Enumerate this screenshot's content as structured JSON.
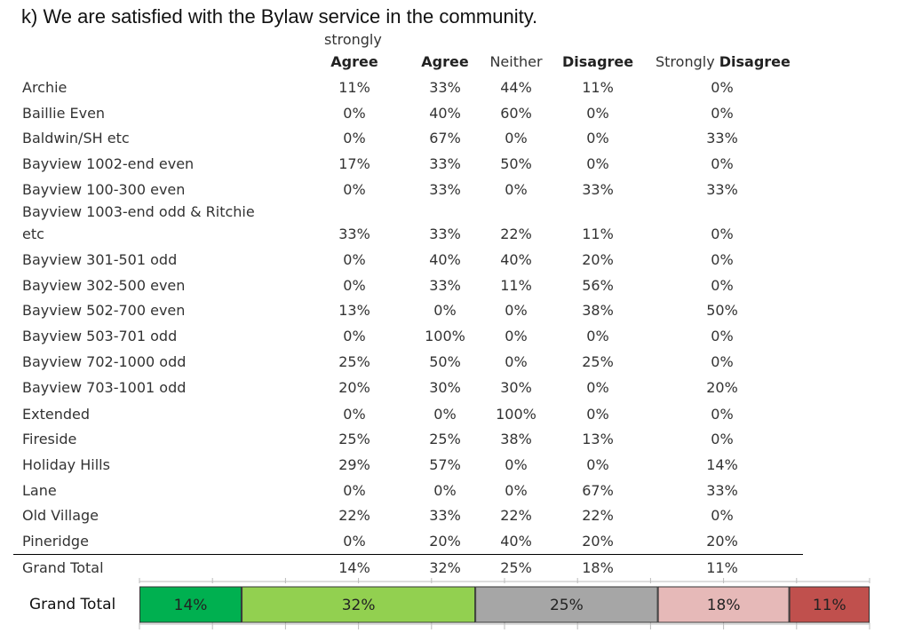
{
  "title": "k) We are satisfied with the Bylaw service in the community.",
  "columns": {
    "strongly_agree_top": "strongly",
    "strongly_agree_bottom": "Agree",
    "agree": "Agree",
    "neither": "Neither",
    "disagree": "Disagree",
    "strongly_disagree_prefix": "Strongly",
    "strongly_disagree_bold": "Disagree"
  },
  "rows": [
    {
      "label": "Archie",
      "values": [
        "11%",
        "33%",
        "44%",
        "11%",
        "0%"
      ]
    },
    {
      "label": "Baillie Even",
      "values": [
        "0%",
        "40%",
        "60%",
        "0%",
        "0%"
      ]
    },
    {
      "label": "Baldwin/SH etc",
      "values": [
        "0%",
        "67%",
        "0%",
        "0%",
        "33%"
      ]
    },
    {
      "label": "Bayview 1002-end even",
      "values": [
        "17%",
        "33%",
        "50%",
        "0%",
        "0%"
      ]
    },
    {
      "label": "Bayview 100-300 even",
      "values": [
        "0%",
        "33%",
        "0%",
        "33%",
        "33%"
      ]
    },
    {
      "label": "Bayview 1003-end odd & Ritchie",
      "label2": "etc",
      "values": [
        "33%",
        "33%",
        "22%",
        "11%",
        "0%"
      ]
    },
    {
      "label": "Bayview 301-501 odd",
      "values": [
        "0%",
        "40%",
        "40%",
        "20%",
        "0%"
      ]
    },
    {
      "label": "Bayview 302-500 even",
      "values": [
        "0%",
        "33%",
        "11%",
        "56%",
        "0%"
      ]
    },
    {
      "label": "Bayview 502-700 even",
      "values": [
        "13%",
        "0%",
        "0%",
        "38%",
        "50%"
      ]
    },
    {
      "label": "Bayview 503-701 odd",
      "values": [
        "0%",
        "100%",
        "0%",
        "0%",
        "0%"
      ]
    },
    {
      "label": "Bayview 702-1000 odd",
      "values": [
        "25%",
        "50%",
        "0%",
        "25%",
        "0%"
      ]
    },
    {
      "label": "Bayview 703-1001 odd",
      "values": [
        "20%",
        "30%",
        "30%",
        "0%",
        "20%"
      ]
    },
    {
      "label": "Extended",
      "values": [
        "0%",
        "0%",
        "100%",
        "0%",
        "0%"
      ]
    },
    {
      "label": "Fireside",
      "values": [
        "25%",
        "25%",
        "38%",
        "13%",
        "0%"
      ]
    },
    {
      "label": "Holiday Hills",
      "values": [
        "29%",
        "57%",
        "0%",
        "0%",
        "14%"
      ]
    },
    {
      "label": "Lane",
      "values": [
        "0%",
        "0%",
        "0%",
        "67%",
        "33%"
      ]
    },
    {
      "label": "Old Village",
      "values": [
        "22%",
        "33%",
        "22%",
        "22%",
        "0%"
      ]
    },
    {
      "label": "Pineridge",
      "values": [
        "0%",
        "20%",
        "40%",
        "20%",
        "20%"
      ]
    }
  ],
  "grand_total": {
    "label": "Grand Total",
    "values": [
      "14%",
      "32%",
      "25%",
      "18%",
      "11%"
    ]
  },
  "chart_data": {
    "type": "bar",
    "orientation": "horizontal-stacked",
    "categories": [
      "Grand Total"
    ],
    "series": [
      {
        "name": "strongly Agree",
        "values": [
          14
        ],
        "color": "#00b050",
        "label": "14%"
      },
      {
        "name": "Agree",
        "values": [
          32
        ],
        "color": "#92d050",
        "label": "32%"
      },
      {
        "name": "Neither",
        "values": [
          25
        ],
        "color": "#a6a6a6",
        "label": "25%"
      },
      {
        "name": "Disagree",
        "values": [
          18
        ],
        "color": "#e6b9b8",
        "label": "18%"
      },
      {
        "name": "Strongly Disagree",
        "values": [
          11
        ],
        "color": "#c0504d",
        "label": "11%"
      }
    ],
    "xlim": [
      0,
      100
    ],
    "grid": false,
    "legend": "none"
  }
}
